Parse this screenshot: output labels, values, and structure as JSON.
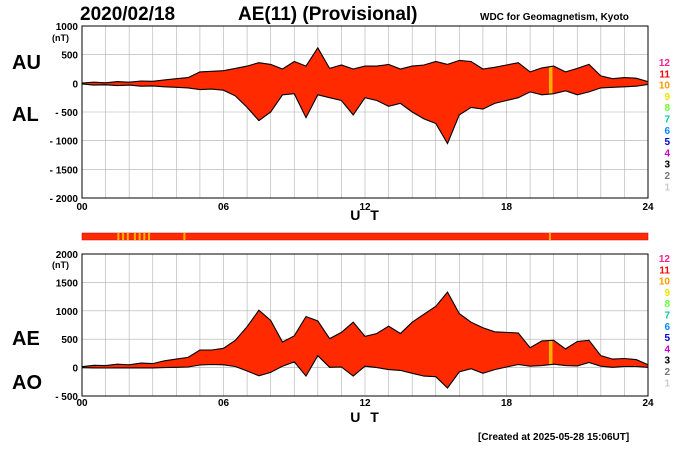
{
  "header": {
    "date": "2020/02/18",
    "title": "AE(11) (Provisional)",
    "source": "WDC for Geomagnetism, Kyoto"
  },
  "footer": {
    "created": "[Created at 2025-05-28 15:06UT]"
  },
  "colors": {
    "fill": "#ff2a00",
    "highlight": "#ffb000",
    "line": "#000000",
    "grid": "#b0b0b0"
  },
  "legend": {
    "labels": [
      "12",
      "11",
      "10",
      "9",
      "8",
      "7",
      "6",
      "5",
      "4",
      "3",
      "2",
      "1"
    ],
    "colors": [
      "#ff1f8f",
      "#ff0000",
      "#ff9900",
      "#e6e600",
      "#66ff33",
      "#00cc99",
      "#0088ff",
      "#0000cc",
      "#cc00cc",
      "#000000",
      "#777777",
      "#cccccc"
    ]
  },
  "chart_data": [
    {
      "type": "area",
      "panel": "AU/AL",
      "side_labels": [
        "AU",
        "AL"
      ],
      "unit": "(nT)",
      "xlabel": "U T",
      "xlim": [
        0,
        24
      ],
      "ylim": [
        -2000,
        1000
      ],
      "xticks": [
        "00",
        "06",
        "12",
        "18",
        "24"
      ],
      "yticks": [
        "1000",
        "500",
        "0",
        "- 500",
        "- 1000",
        "- 1500",
        "- 2000"
      ],
      "ytick_values": [
        1000,
        500,
        0,
        -500,
        -1000,
        -1500,
        -2000
      ],
      "x": [
        0,
        0.5,
        1,
        1.5,
        2,
        2.5,
        3,
        3.5,
        4,
        4.5,
        5,
        5.5,
        6,
        6.5,
        7,
        7.5,
        8,
        8.5,
        9,
        9.5,
        10,
        10.5,
        11,
        11.5,
        12,
        12.5,
        13,
        13.5,
        14,
        14.5,
        15,
        15.5,
        16,
        16.5,
        17,
        17.5,
        18,
        18.5,
        19,
        19.5,
        20,
        20.5,
        21,
        21.5,
        22,
        22.5,
        23,
        23.5,
        24
      ],
      "series": [
        {
          "name": "AU",
          "values": [
            5,
            20,
            10,
            30,
            20,
            40,
            35,
            60,
            80,
            100,
            200,
            210,
            220,
            260,
            300,
            360,
            330,
            250,
            380,
            300,
            620,
            260,
            320,
            250,
            300,
            300,
            330,
            250,
            300,
            320,
            380,
            330,
            400,
            380,
            250,
            280,
            320,
            360,
            200,
            270,
            300,
            200,
            260,
            330,
            130,
            80,
            100,
            90,
            30
          ]
        },
        {
          "name": "AL",
          "values": [
            -10,
            -30,
            -25,
            -40,
            -30,
            -50,
            -45,
            -60,
            -70,
            -80,
            -110,
            -100,
            -120,
            -220,
            -420,
            -650,
            -500,
            -200,
            -180,
            -600,
            -200,
            -250,
            -300,
            -550,
            -250,
            -300,
            -400,
            -350,
            -500,
            -620,
            -700,
            -1050,
            -550,
            -420,
            -450,
            -350,
            -300,
            -250,
            -150,
            -200,
            -180,
            -130,
            -200,
            -150,
            -80,
            -70,
            -60,
            -50,
            -20
          ]
        }
      ],
      "highlights": [
        {
          "x": 19.8,
          "width": 0.15
        }
      ]
    },
    {
      "type": "area",
      "panel": "AE/AO",
      "side_labels": [
        "AE",
        "AO"
      ],
      "unit": "(nT)",
      "xlabel": "U T",
      "xlim": [
        0,
        24
      ],
      "ylim": [
        -500,
        2000
      ],
      "xticks": [
        "00",
        "06",
        "12",
        "18",
        "24"
      ],
      "yticks": [
        "2000",
        "1500",
        "1000",
        "500",
        "0",
        "- 500"
      ],
      "ytick_values": [
        2000,
        1500,
        1000,
        500,
        0,
        -500
      ],
      "x": [
        0,
        0.5,
        1,
        1.5,
        2,
        2.5,
        3,
        3.5,
        4,
        4.5,
        5,
        5.5,
        6,
        6.5,
        7,
        7.5,
        8,
        8.5,
        9,
        9.5,
        10,
        10.5,
        11,
        11.5,
        12,
        12.5,
        13,
        13.5,
        14,
        14.5,
        15,
        15.5,
        16,
        16.5,
        17,
        17.5,
        18,
        18.5,
        19,
        19.5,
        20,
        20.5,
        21,
        21.5,
        22,
        22.5,
        23,
        23.5,
        24
      ],
      "series": [
        {
          "name": "AE",
          "values": [
            15,
            40,
            35,
            60,
            50,
            80,
            70,
            120,
            150,
            180,
            310,
            310,
            340,
            480,
            720,
            1010,
            830,
            450,
            560,
            900,
            820,
            510,
            620,
            800,
            550,
            600,
            730,
            600,
            800,
            940,
            1080,
            1330,
            950,
            800,
            700,
            630,
            620,
            610,
            350,
            470,
            480,
            330,
            460,
            480,
            210,
            150,
            160,
            140,
            50
          ]
        },
        {
          "name": "AO",
          "values": [
            -2,
            -5,
            -7,
            -5,
            -5,
            -5,
            -5,
            0,
            5,
            10,
            45,
            55,
            50,
            20,
            -60,
            -145,
            -85,
            25,
            100,
            -150,
            210,
            5,
            10,
            -150,
            25,
            0,
            -35,
            -50,
            -100,
            -150,
            -160,
            -360,
            -75,
            -20,
            -100,
            -35,
            10,
            55,
            25,
            35,
            60,
            35,
            30,
            90,
            25,
            5,
            20,
            20,
            5
          ]
        }
      ],
      "highlights": [
        {
          "x": 19.8,
          "width": 0.15
        }
      ]
    }
  ],
  "activity_bar": {
    "segments": [
      1.5,
      1.7,
      1.9,
      2.2,
      2.4,
      2.6,
      2.8,
      4.3,
      19.8
    ]
  }
}
